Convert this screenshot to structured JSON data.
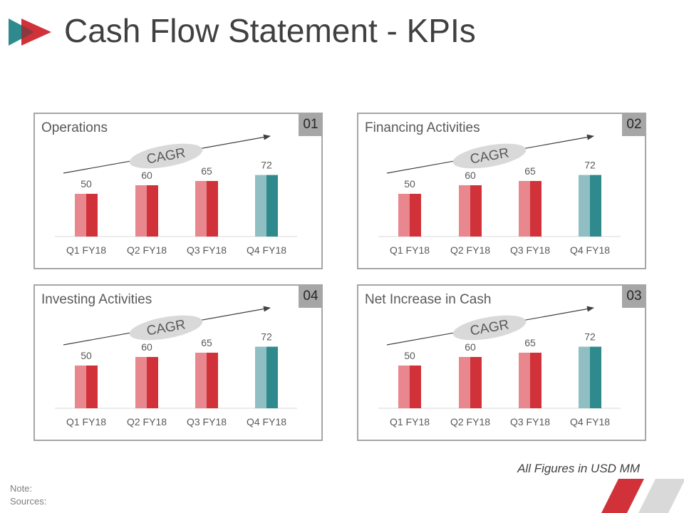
{
  "slide": {
    "title": "Cash Flow Statement - KPIs",
    "footnote": "All Figures in USD MM",
    "note_label": "Note:",
    "sources_label": "Sources:"
  },
  "colors": {
    "red_dark": "#d13239",
    "red_light": "#e8878e",
    "teal_dark": "#2e8a8c",
    "teal_light": "#8fbfc2",
    "badge": "#a6a6a6",
    "oval": "#d9d9d9"
  },
  "chart_data": [
    {
      "type": "bar",
      "title": "Operations",
      "badge": "01",
      "annotation": "CAGR",
      "categories": [
        "Q1 FY18",
        "Q2 FY18",
        "Q3 FY18",
        "Q4 FY18"
      ],
      "values": [
        50,
        60,
        65,
        72
      ],
      "highlight_index": 3
    },
    {
      "type": "bar",
      "title": "Financing Activities",
      "badge": "02",
      "annotation": "CAGR",
      "categories": [
        "Q1 FY18",
        "Q2 FY18",
        "Q3 FY18",
        "Q4 FY18"
      ],
      "values": [
        50,
        60,
        65,
        72
      ],
      "highlight_index": 3
    },
    {
      "type": "bar",
      "title": "Investing Activities",
      "badge": "04",
      "annotation": "CAGR",
      "categories": [
        "Q1 FY18",
        "Q2 FY18",
        "Q3 FY18",
        "Q4 FY18"
      ],
      "values": [
        50,
        60,
        65,
        72
      ],
      "highlight_index": 3
    },
    {
      "type": "bar",
      "title": "Net Increase in Cash",
      "badge": "03",
      "annotation": "CAGR",
      "categories": [
        "Q1 FY18",
        "Q2 FY18",
        "Q3 FY18",
        "Q4 FY18"
      ],
      "values": [
        50,
        60,
        65,
        72
      ],
      "highlight_index": 3
    }
  ]
}
